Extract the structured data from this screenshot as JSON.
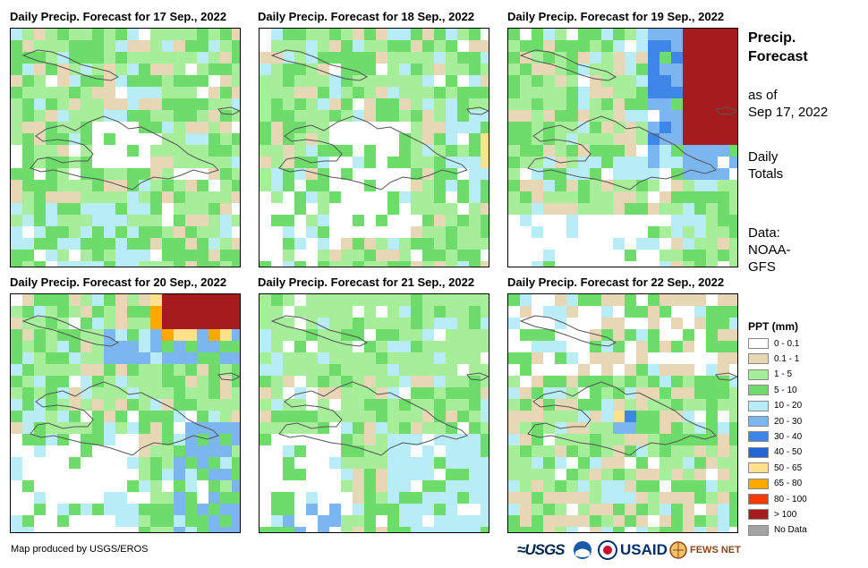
{
  "panels": [
    {
      "title": "Daily Precip. Forecast for 17 Sep., 2022",
      "seed": 11
    },
    {
      "title": "Daily Precip. Forecast for 18 Sep., 2022",
      "seed": 23
    },
    {
      "title": "Daily Precip. Forecast for 19 Sep., 2022",
      "seed": 37
    },
    {
      "title": "Daily Precip. Forecast for 20 Sep., 2022",
      "seed": 41
    },
    {
      "title": "Daily Precip. Forecast for 21 Sep., 2022",
      "seed": 53
    },
    {
      "title": "Daily Precip. Forecast for 22 Sep., 2022",
      "seed": 67
    }
  ],
  "side": {
    "heading_line1": "Precip.",
    "heading_line2": "Forecast",
    "asof_line1": "as of",
    "asof_line2": "Sep 17, 2022",
    "daily_line1": "Daily",
    "daily_line2": "Totals",
    "data_line1": "Data:",
    "data_line2": "NOAA-",
    "data_line3": "GFS"
  },
  "legend": {
    "title": "PPT (mm)",
    "items": [
      {
        "label": "0 - 0.1",
        "color": "#ffffff"
      },
      {
        "label": "0.1 - 1",
        "color": "#e8d7b5"
      },
      {
        "label": "1 - 5",
        "color": "#a6ee9a"
      },
      {
        "label": "5 - 10",
        "color": "#6ddc6a"
      },
      {
        "label": "10 - 20",
        "color": "#b8ecf6"
      },
      {
        "label": "20 - 30",
        "color": "#7bb6f1"
      },
      {
        "label": "30 - 40",
        "color": "#3e86e8"
      },
      {
        "label": "40 - 50",
        "color": "#2563d9"
      },
      {
        "label": "50 - 65",
        "color": "#ffe28a"
      },
      {
        "label": "65 - 80",
        "color": "#ffa800"
      },
      {
        "label": "80 - 100",
        "color": "#ff3b00"
      },
      {
        "label": "> 100",
        "color": "#a61c1c"
      },
      {
        "label": "No Data",
        "color": "#a3a3a3"
      }
    ]
  },
  "footer": {
    "credit": "Map produced by USGS/EROS",
    "logo_usgs": "≈USGS",
    "logo_usaid": "USAID",
    "logo_fews": "FEWS NET"
  }
}
